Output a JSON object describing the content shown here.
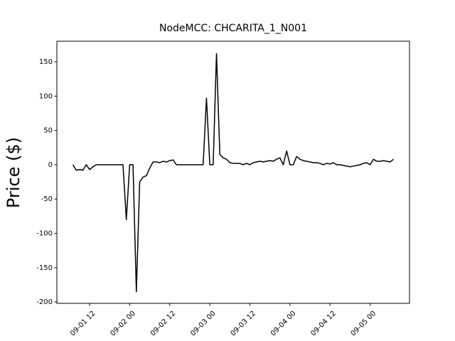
{
  "chart_data": {
    "type": "line",
    "title": "NodeMCC: CHCARITA_1_N001",
    "y_label": "Price ($)",
    "x": [
      "09-01 07:00",
      "09-01 08:00",
      "09-01 09:00",
      "09-01 10:00",
      "09-01 11:00",
      "09-01 12:00",
      "09-01 13:00",
      "09-01 14:00",
      "09-01 15:00",
      "09-01 16:00",
      "09-01 17:00",
      "09-01 18:00",
      "09-01 19:00",
      "09-01 20:00",
      "09-01 21:00",
      "09-01 22:00",
      "09-01 23:00",
      "09-02 00:00",
      "09-02 01:00",
      "09-02 02:00",
      "09-02 03:00",
      "09-02 04:00",
      "09-02 05:00",
      "09-02 06:00",
      "09-02 07:00",
      "09-02 08:00",
      "09-02 09:00",
      "09-02 10:00",
      "09-02 11:00",
      "09-02 12:00",
      "09-02 13:00",
      "09-02 14:00",
      "09-02 15:00",
      "09-02 16:00",
      "09-02 17:00",
      "09-02 18:00",
      "09-02 19:00",
      "09-02 20:00",
      "09-02 21:00",
      "09-02 22:00",
      "09-02 23:00",
      "09-03 00:00",
      "09-03 01:00",
      "09-03 02:00",
      "09-03 03:00",
      "09-03 04:00",
      "09-03 05:00",
      "09-03 06:00",
      "09-03 07:00",
      "09-03 08:00",
      "09-03 09:00",
      "09-03 10:00",
      "09-03 11:00",
      "09-03 12:00",
      "09-03 13:00",
      "09-03 14:00",
      "09-03 15:00",
      "09-03 16:00",
      "09-03 17:00",
      "09-03 18:00",
      "09-03 19:00",
      "09-03 20:00",
      "09-03 21:00",
      "09-03 22:00",
      "09-03 23:00",
      "09-04 00:00",
      "09-04 01:00",
      "09-04 02:00",
      "09-04 03:00",
      "09-04 04:00",
      "09-04 05:00",
      "09-04 06:00",
      "09-04 07:00",
      "09-04 08:00",
      "09-04 09:00",
      "09-04 10:00",
      "09-04 11:00",
      "09-04 12:00",
      "09-04 13:00",
      "09-04 14:00",
      "09-04 15:00",
      "09-04 16:00",
      "09-04 17:00",
      "09-04 18:00",
      "09-04 19:00",
      "09-04 20:00",
      "09-04 21:00",
      "09-04 22:00",
      "09-04 23:00",
      "09-05 00:00",
      "09-05 01:00",
      "09-05 02:00",
      "09-05 03:00",
      "09-05 04:00",
      "09-05 05:00",
      "09-05 06:00",
      "09-05 07:00"
    ],
    "series": [
      {
        "name": "CHCARITA_1_N001",
        "color": "#000000",
        "values": [
          0,
          -8,
          -7,
          -8,
          0,
          -7,
          -3,
          0,
          0,
          0,
          0,
          0,
          0,
          0,
          0,
          0,
          -80,
          0,
          0,
          -185,
          -25,
          -18,
          -16,
          -5,
          4,
          4,
          3,
          5,
          4,
          6,
          7,
          0,
          0,
          0,
          0,
          0,
          0,
          0,
          0,
          0,
          97,
          0,
          0,
          162,
          15,
          10,
          8,
          3,
          2,
          2,
          2,
          0,
          2,
          0,
          3,
          4,
          5,
          4,
          5,
          6,
          5,
          8,
          10,
          0,
          20,
          0,
          0,
          12,
          8,
          6,
          5,
          4,
          3,
          3,
          2,
          0,
          2,
          1,
          3,
          0,
          0,
          -1,
          -2,
          -3,
          -2,
          -1,
          0,
          2,
          3,
          0,
          8,
          5,
          5,
          6,
          5,
          4,
          8
        ]
      }
    ],
    "xlim": [
      "09-01 02:12",
      "09-05 11:48"
    ],
    "xticks": [
      {
        "value": "09-01 12:00",
        "label": "09-01 12"
      },
      {
        "value": "09-02 00:00",
        "label": "09-02 00"
      },
      {
        "value": "09-02 12:00",
        "label": "09-02 12"
      },
      {
        "value": "09-03 00:00",
        "label": "09-03 00"
      },
      {
        "value": "09-03 12:00",
        "label": "09-03 12"
      },
      {
        "value": "09-04 00:00",
        "label": "09-04 00"
      },
      {
        "value": "09-04 12:00",
        "label": "09-04 12"
      },
      {
        "value": "09-05 00:00",
        "label": "09-05 00"
      }
    ],
    "ylim": [
      -202,
      180
    ],
    "yticks": [
      -200,
      -150,
      -100,
      -50,
      0,
      50,
      100,
      150
    ],
    "grid": false
  }
}
